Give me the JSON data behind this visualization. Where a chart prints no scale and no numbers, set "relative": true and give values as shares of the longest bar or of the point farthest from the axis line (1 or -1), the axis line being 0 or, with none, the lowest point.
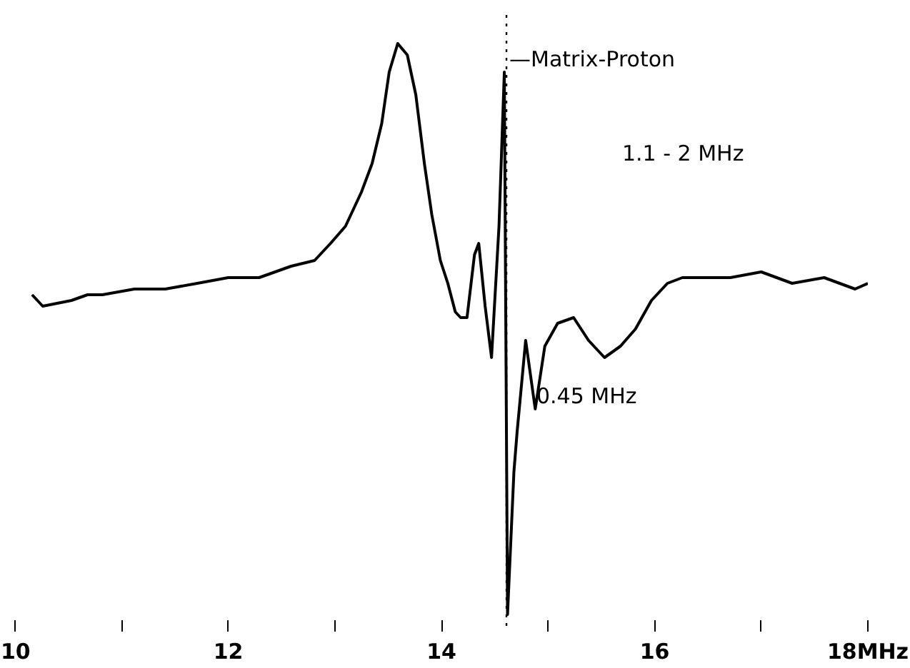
{
  "chart_data": {
    "type": "line",
    "relative": true,
    "color": "#000000",
    "x": [
      10.16,
      10.26,
      10.53,
      10.68,
      10.82,
      11.12,
      11.41,
      11.71,
      12.0,
      12.29,
      12.59,
      12.81,
      12.96,
      13.1,
      13.25,
      13.35,
      13.44,
      13.51,
      13.59,
      13.68,
      13.76,
      13.84,
      13.91,
      13.99,
      14.06,
      14.13,
      14.18,
      14.24,
      14.31,
      14.35,
      14.41,
      14.47,
      14.54,
      14.59,
      14.62,
      14.68,
      14.71,
      14.79,
      14.88,
      14.97,
      15.09,
      15.24,
      15.38,
      15.53,
      15.68,
      15.82,
      15.97,
      16.12,
      16.26,
      16.41,
      16.71,
      17.0,
      17.29,
      17.59,
      17.88,
      18.0
    ],
    "values": [
      0.56,
      0.54,
      0.55,
      0.56,
      0.56,
      0.57,
      0.57,
      0.58,
      0.59,
      0.59,
      0.61,
      0.62,
      0.65,
      0.68,
      0.74,
      0.79,
      0.86,
      0.95,
      1.0,
      0.98,
      0.91,
      0.79,
      0.7,
      0.62,
      0.58,
      0.53,
      0.52,
      0.52,
      0.63,
      0.65,
      0.54,
      0.45,
      0.68,
      0.95,
      0.0,
      0.25,
      0.32,
      0.48,
      0.36,
      0.47,
      0.51,
      0.52,
      0.48,
      0.45,
      0.47,
      0.5,
      0.55,
      0.58,
      0.59,
      0.59,
      0.59,
      0.6,
      0.58,
      0.59,
      0.57,
      0.58
    ],
    "xlim": [
      10,
      18
    ],
    "xticks": [
      10,
      {
        "value": 11,
        "label": null
      },
      12,
      {
        "value": 13,
        "label": null
      },
      14,
      {
        "value": 15,
        "label": null
      },
      16,
      {
        "value": 17,
        "label": null
      },
      {
        "value": 18,
        "label": "18MHz"
      }
    ],
    "ref_lines": [
      {
        "axis": "x",
        "value": 14.61,
        "label": "—Matrix-Proton",
        "line_style": "dotted"
      }
    ],
    "annotations": [
      "1.1 - 2 MHz",
      "0.45 MHz"
    ]
  }
}
